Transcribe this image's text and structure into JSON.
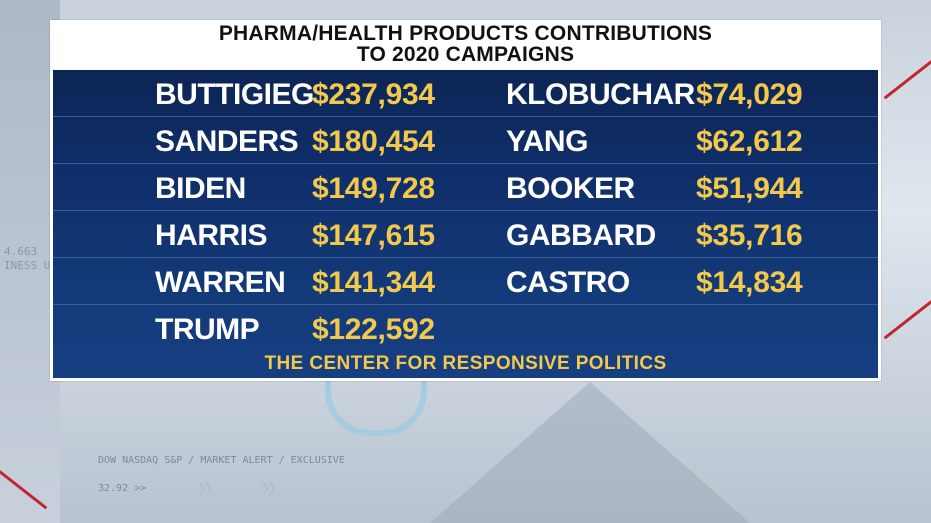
{
  "graphic": {
    "title_line1": "PHARMA/HEALTH PRODUCTS CONTRIBUTIONS",
    "title_line2": "TO 2020 CAMPAIGNS",
    "rows": [
      {
        "left": {
          "name": "BUTTIGIEG",
          "amount": "$237,934"
        },
        "right": {
          "name": "KLOBUCHAR",
          "amount": "$74,029"
        }
      },
      {
        "left": {
          "name": "SANDERS",
          "amount": "$180,454"
        },
        "right": {
          "name": "YANG",
          "amount": "$62,612"
        }
      },
      {
        "left": {
          "name": "BIDEN",
          "amount": "$149,728"
        },
        "right": {
          "name": "BOOKER",
          "amount": "$51,944"
        }
      },
      {
        "left": {
          "name": "HARRIS",
          "amount": "$147,615"
        },
        "right": {
          "name": "GABBARD",
          "amount": "$35,716"
        }
      },
      {
        "left": {
          "name": "WARREN",
          "amount": "$141,344"
        },
        "right": {
          "name": "CASTRO",
          "amount": "$14,834"
        }
      },
      {
        "left": {
          "name": "TRUMP",
          "amount": "$122,592"
        },
        "right": {
          "name": "",
          "amount": ""
        }
      }
    ],
    "source": "THE CENTER FOR RESPONSIVE POLITICS"
  },
  "background": {
    "ticker_line1": "4.663",
    "ticker_line2": "INESS U",
    "market_line": "DOW NASDAQ S&P  /  MARKET ALERT  /  EXCLUSIVE",
    "value": "32.92 >>"
  },
  "colors": {
    "panel_blue": "#123570",
    "amount_gold": "#f2c94c",
    "name_white": "#ffffff"
  }
}
